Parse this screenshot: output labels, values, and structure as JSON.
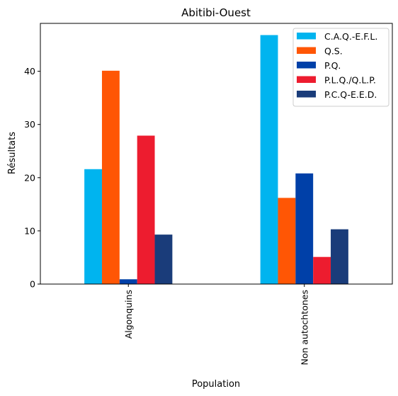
{
  "chart_data": {
    "type": "bar",
    "title": "Abitibi-Ouest",
    "xlabel": "Population",
    "ylabel": "Résultats",
    "categories": [
      "Algonquins",
      "Non autochtones"
    ],
    "series": [
      {
        "name": "C.A.Q.-E.F.L.",
        "color": "#00b4ef",
        "values": [
          21.6,
          46.8
        ]
      },
      {
        "name": "Q.S.",
        "color": "#ff5605",
        "values": [
          40.1,
          16.2
        ]
      },
      {
        "name": "P.Q.",
        "color": "#0040a8",
        "values": [
          0.9,
          20.8
        ]
      },
      {
        "name": "P.L.Q./Q.L.P.",
        "color": "#ed1c2f",
        "values": [
          27.9,
          5.1
        ]
      },
      {
        "name": "P.C.Q-E.E.D.",
        "color": "#1a3c7a",
        "values": [
          9.3,
          10.3
        ]
      }
    ],
    "ylim": [
      0,
      49
    ],
    "yticks": [
      0,
      10,
      20,
      30,
      40
    ],
    "grid": false,
    "legend_position": "top-right"
  }
}
